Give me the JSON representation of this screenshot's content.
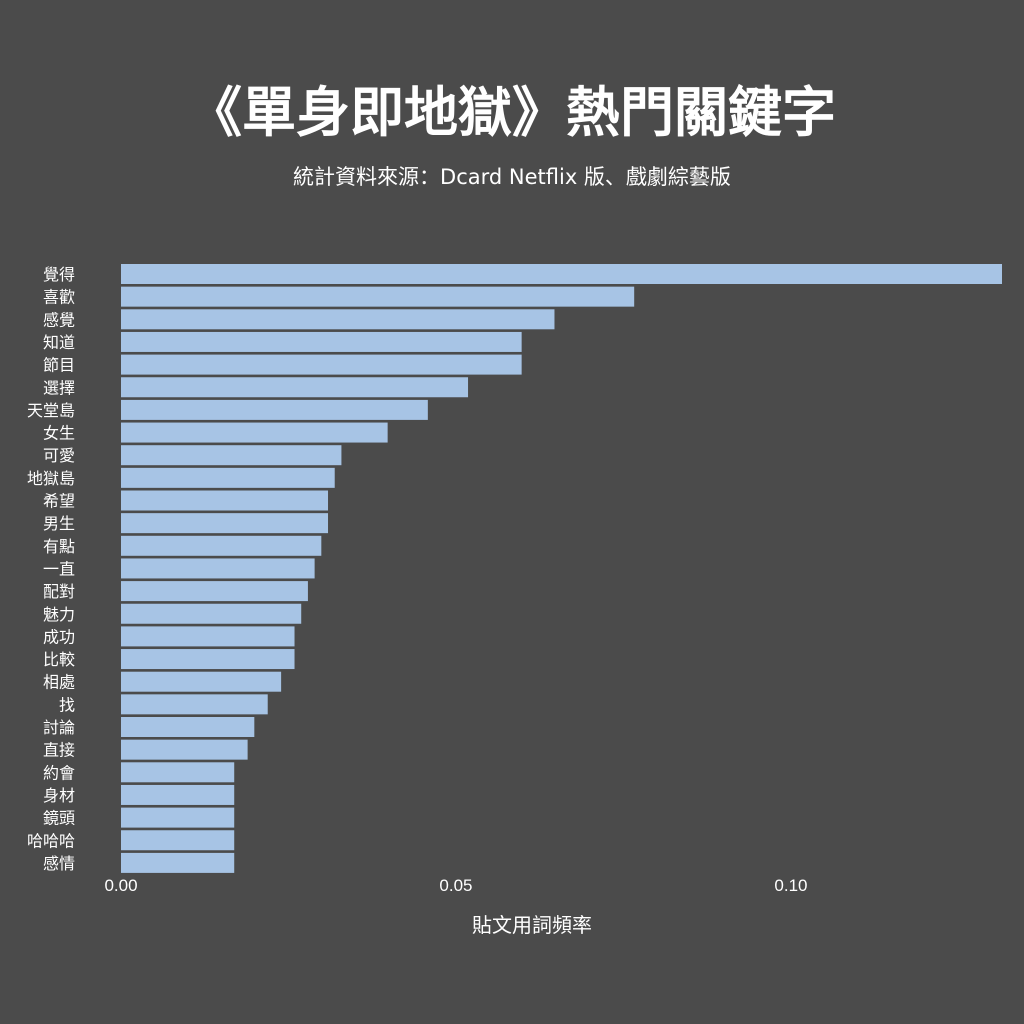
{
  "title": "《單身即地獄》熱門關鍵字",
  "subtitle": "統計資料來源：Dcard Netflix 版、戲劇綜藝版",
  "colors": {
    "background": "#4b4b4b",
    "bar": "#a7c4e5",
    "text": "#ffffff"
  },
  "chart_data": {
    "type": "bar",
    "orientation": "horizontal",
    "xlabel": "貼文用詞頻率",
    "ylabel": "",
    "xlim": [
      0,
      0.1315
    ],
    "xticks": [
      0.0,
      0.05,
      0.1
    ],
    "xtick_labels": [
      "0.00",
      "0.05",
      "0.10"
    ],
    "grid": false,
    "categories": [
      "覺得",
      "喜歡",
      "感覺",
      "知道",
      "節目",
      "選擇",
      "天堂島",
      "女生",
      "可愛",
      "地獄島",
      "希望",
      "男生",
      "有點",
      "一直",
      "配對",
      "魅力",
      "成功",
      "比較",
      "相處",
      "找",
      "討論",
      "直接",
      "約會",
      "身材",
      "鏡頭",
      "哈哈哈",
      "感情"
    ],
    "values": [
      0.1315,
      0.0766,
      0.0647,
      0.0598,
      0.0598,
      0.0518,
      0.0458,
      0.0398,
      0.0329,
      0.0319,
      0.0309,
      0.0309,
      0.0299,
      0.0289,
      0.0279,
      0.0269,
      0.0259,
      0.0259,
      0.0239,
      0.0219,
      0.0199,
      0.0189,
      0.0169,
      0.0169,
      0.0169,
      0.0169,
      0.0169
    ]
  }
}
